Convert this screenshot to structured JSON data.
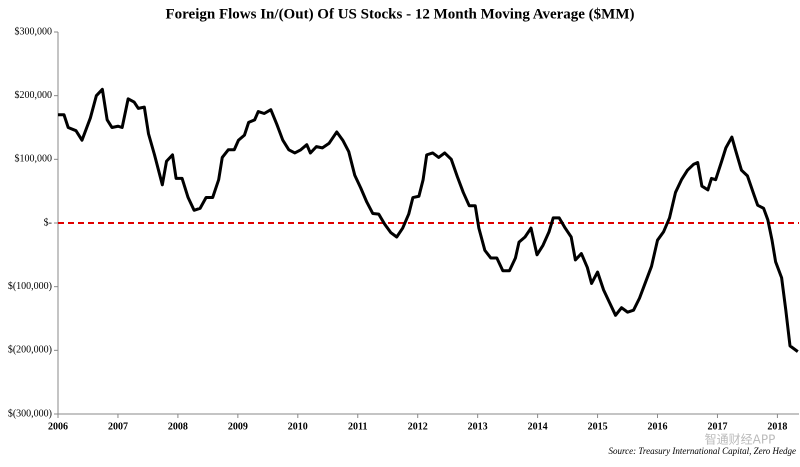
{
  "chart_data": {
    "type": "line",
    "title": "Foreign Flows In/(Out) Of  US Stocks  - 12 Month Moving Average ($MM)",
    "source": "Source: Treasury International Capital, Zero Hedge",
    "watermark": "智通财经APP",
    "color": "#000000",
    "reference_line": {
      "value": 0,
      "color": "#e00000",
      "style": "dashed"
    },
    "x": [
      2006,
      2006.1,
      2006.17,
      2006.3,
      2006.4,
      2006.54,
      2006.64,
      2006.74,
      2006.82,
      2006.9,
      2007,
      2007.07,
      2007.17,
      2007.27,
      2007.34,
      2007.44,
      2007.51,
      2007.61,
      2007.74,
      2007.81,
      2007.91,
      2007.97,
      2008.07,
      2008.17,
      2008.27,
      2008.37,
      2008.47,
      2008.58,
      2008.68,
      2008.74,
      2008.84,
      2008.94,
      2009.01,
      2009.11,
      2009.18,
      2009.28,
      2009.34,
      2009.44,
      2009.55,
      2009.65,
      2009.75,
      2009.85,
      2009.95,
      2010.05,
      2010.15,
      2010.21,
      2010.31,
      2010.41,
      2010.52,
      2010.65,
      2010.75,
      2010.85,
      2010.95,
      2011.05,
      2011.15,
      2011.25,
      2011.35,
      2011.45,
      2011.55,
      2011.65,
      2011.75,
      2011.85,
      2011.92,
      2012.02,
      2012.09,
      2012.15,
      2012.25,
      2012.35,
      2012.45,
      2012.56,
      2012.66,
      2012.76,
      2012.86,
      2012.96,
      2013.02,
      2013.12,
      2013.22,
      2013.32,
      2013.42,
      2013.53,
      2013.63,
      2013.69,
      2013.79,
      2013.89,
      2013.99,
      2014.09,
      2014.19,
      2014.26,
      2014.36,
      2014.46,
      2014.56,
      2014.63,
      2014.73,
      2014.83,
      2014.9,
      2015,
      2015.1,
      2015.2,
      2015.3,
      2015.4,
      2015.5,
      2015.6,
      2015.7,
      2015.8,
      2015.9,
      2016,
      2016.1,
      2016.2,
      2016.3,
      2016.4,
      2016.5,
      2016.6,
      2016.67,
      2016.74,
      2016.84,
      2016.9,
      2016.97,
      2017.07,
      2017.14,
      2017.24,
      2017.3,
      2017.4,
      2017.5,
      2017.61,
      2017.67,
      2017.77,
      2017.84,
      2017.91,
      2017.97,
      2018.07,
      2018.14,
      2018.21,
      2018.34
    ],
    "values": [
      170000,
      170000,
      150000,
      145000,
      130000,
      165000,
      200000,
      210000,
      162000,
      150000,
      152000,
      150000,
      195000,
      190000,
      180000,
      182000,
      140000,
      107000,
      60000,
      97000,
      107000,
      70000,
      70000,
      40000,
      20000,
      23000,
      40000,
      40000,
      68000,
      103000,
      115000,
      115000,
      130000,
      138000,
      158000,
      162000,
      175000,
      172000,
      178000,
      155000,
      130000,
      115000,
      110000,
      115000,
      123000,
      110000,
      120000,
      118000,
      125000,
      143000,
      130000,
      112000,
      75000,
      55000,
      33000,
      15000,
      14000,
      -2000,
      -15000,
      -22000,
      -8000,
      14000,
      40000,
      42000,
      68000,
      107000,
      110000,
      103000,
      110000,
      100000,
      73000,
      48000,
      27000,
      27000,
      -8000,
      -43000,
      -55000,
      -55000,
      -75000,
      -75000,
      -55000,
      -30000,
      -22000,
      -8000,
      -50000,
      -35000,
      -14000,
      8000,
      8000,
      -8000,
      -22000,
      -58000,
      -48000,
      -70000,
      -95000,
      -77000,
      -105000,
      -125000,
      -145000,
      -133000,
      -140000,
      -137000,
      -118000,
      -93000,
      -68000,
      -27000,
      -14000,
      8000,
      48000,
      68000,
      83000,
      92000,
      95000,
      58000,
      52000,
      70000,
      68000,
      97000,
      118000,
      135000,
      115000,
      83000,
      74000,
      44000,
      28000,
      23000,
      5000,
      -27000,
      -61000,
      -86000,
      -137000,
      -193000,
      -202000
    ],
    "xlim": [
      2006,
      2018.36
    ],
    "xticks": [
      2006,
      2007,
      2008,
      2009,
      2010,
      2011,
      2012,
      2013,
      2014,
      2015,
      2016,
      2017,
      2018
    ],
    "ylim": [
      -300000,
      300000
    ],
    "yticks": [
      {
        "value": -300000,
        "label": "$(300,000)"
      },
      {
        "value": -200000,
        "label": "$(200,000)"
      },
      {
        "value": -100000,
        "label": "$(100,000)"
      },
      {
        "value": 0,
        "label": "$-"
      },
      {
        "value": 100000,
        "label": "$100,000"
      },
      {
        "value": 200000,
        "label": "$200,000"
      },
      {
        "value": 300000,
        "label": "$300,000"
      }
    ]
  }
}
